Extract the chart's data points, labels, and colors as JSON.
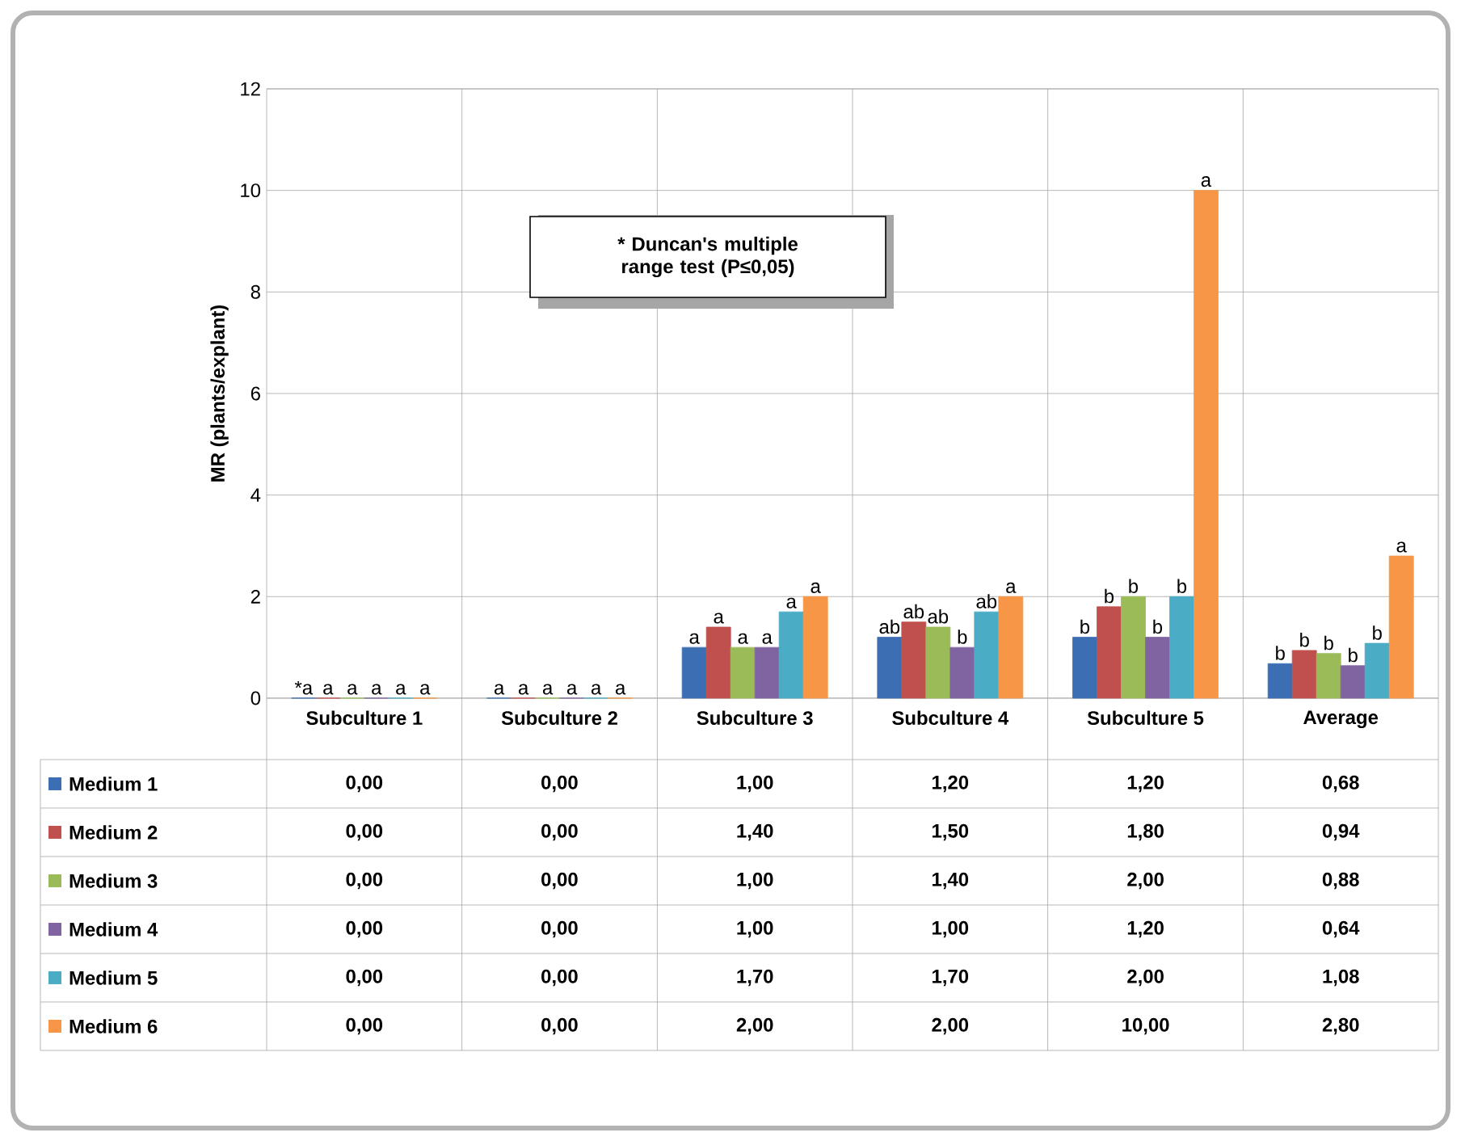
{
  "chart_data": {
    "type": "bar",
    "ylabel": "MR (plants/explant)",
    "ylim": [
      0,
      12
    ],
    "yticks": [
      0,
      2,
      4,
      6,
      8,
      10,
      12
    ],
    "grid": true,
    "legend": "bottom",
    "categories": [
      "Subculture 1",
      "Subculture 2",
      "Subculture 3",
      "Subculture 4",
      "Subculture 5",
      "Average"
    ],
    "series": [
      {
        "name": "Medium 1",
        "color": "#3c6eb4",
        "values": [
          0,
          0,
          1,
          1.2,
          1.2,
          0.68
        ],
        "value_labels": [
          "0,00",
          "0,00",
          "1,00",
          "1,20",
          "1,20",
          "0,68"
        ]
      },
      {
        "name": "Medium 2",
        "color": "#c0504d",
        "values": [
          0,
          0,
          1.4,
          1.5,
          1.8,
          0.94
        ],
        "value_labels": [
          "0,00",
          "0,00",
          "1,40",
          "1,50",
          "1,80",
          "0,94"
        ]
      },
      {
        "name": "Medium 3",
        "color": "#9bbb59",
        "values": [
          0,
          0,
          1,
          1.4,
          2,
          0.88
        ],
        "value_labels": [
          "0,00",
          "0,00",
          "1,00",
          "1,40",
          "2,00",
          "0,88"
        ]
      },
      {
        "name": "Medium 4",
        "color": "#8064a2",
        "values": [
          0,
          0,
          1,
          1,
          1.2,
          0.64
        ],
        "value_labels": [
          "0,00",
          "0,00",
          "1,00",
          "1,00",
          "1,20",
          "0,64"
        ]
      },
      {
        "name": "Medium 5",
        "color": "#4bacc6",
        "values": [
          0,
          0,
          1.7,
          1.7,
          2,
          1.08
        ],
        "value_labels": [
          "0,00",
          "0,00",
          "1,70",
          "1,70",
          "2,00",
          "1,08"
        ]
      },
      {
        "name": "Medium 6",
        "color": "#f79646",
        "values": [
          0,
          0,
          2,
          2,
          10,
          2.8
        ],
        "value_labels": [
          "0,00",
          "0,00",
          "2,00",
          "2,00",
          "10,00",
          "2,80"
        ]
      }
    ],
    "annotations": [
      "*a",
      "a",
      "a",
      "a",
      "a",
      "a",
      "a",
      "a",
      "a",
      "a",
      "a",
      "a",
      "a",
      "a",
      "a",
      "a",
      "a",
      "a",
      "ab",
      "ab",
      "ab",
      "b",
      "ab",
      "a",
      "b",
      "b",
      "b",
      "b",
      "b",
      "a",
      "b",
      "b",
      "b",
      "b",
      "b",
      "a",
      "* Duncan's multiple range test (P≤0,05)"
    ]
  }
}
